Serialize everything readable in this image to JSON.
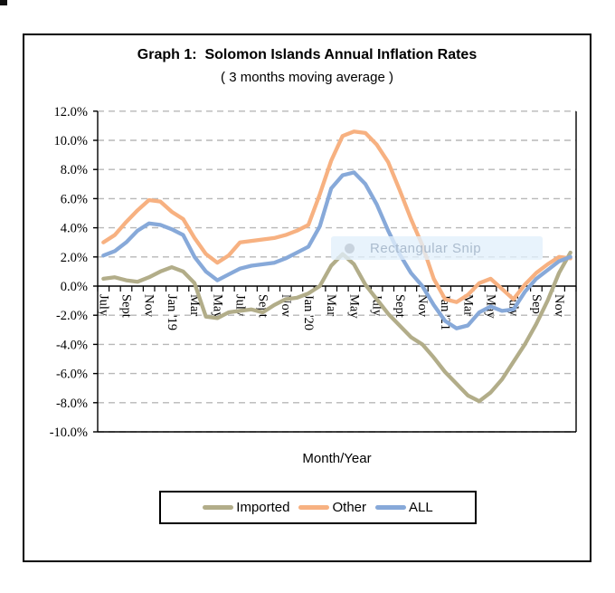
{
  "chart": {
    "title": "Graph 1:  Solomon Islands Annual Inflation Rates",
    "subtitle": "( 3 months moving average )",
    "x_axis_title": "Month/Year",
    "overlay": {
      "label": "Rectangular Snip"
    },
    "colors": {
      "imported": "#b2ad89",
      "other": "#f7b181",
      "all": "#87a9d9",
      "gridline": "#b8b8b8",
      "axis": "#000000"
    }
  },
  "chart_data": {
    "type": "line",
    "title": "Graph 1: Solomon Islands Annual Inflation Rates",
    "subtitle": "( 3 months moving average )",
    "xlabel": "Month/Year",
    "ylabel": "",
    "ylim": [
      -10,
      12
    ],
    "grid": "horizontal-dashed",
    "legend_position": "bottom",
    "y_tick_labels": [
      "12.0%",
      "10.0%",
      "8.0%",
      "6.0%",
      "4.0%",
      "2.0%",
      "0.0%",
      "-2.0%",
      "-4.0%",
      "-6.0%",
      "-8.0%",
      "-10.0%"
    ],
    "y_tick_values": [
      12,
      10,
      8,
      6,
      4,
      2,
      0,
      -2,
      -4,
      -6,
      -8,
      -10
    ],
    "x_tick_labels": [
      "July",
      "Sept",
      "Nov",
      "Jan '19",
      "Mar",
      "May",
      "July",
      "Sept",
      "Nov",
      "Jan '20",
      "Mar",
      "May",
      "July",
      "Sept",
      "Nov",
      "Jan '21",
      "Mar",
      "May",
      "July",
      "Sep",
      "Nov"
    ],
    "categories": [
      "Jul '18",
      "Aug '18",
      "Sep '18",
      "Oct '18",
      "Nov '18",
      "Dec '18",
      "Jan '19",
      "Feb '19",
      "Mar '19",
      "Apr '19",
      "May '19",
      "Jun '19",
      "Jul '19",
      "Aug '19",
      "Sep '19",
      "Oct '19",
      "Nov '19",
      "Dec '19",
      "Jan '20",
      "Feb '20",
      "Mar '20",
      "Apr '20",
      "May '20",
      "Jun '20",
      "Jul '20",
      "Aug '20",
      "Sep '20",
      "Oct '20",
      "Nov '20",
      "Dec '20",
      "Jan '21",
      "Feb '21",
      "Mar '21",
      "Apr '21",
      "May '21",
      "Jun '21",
      "Jul '21",
      "Aug '21",
      "Sep '21",
      "Oct '21",
      "Nov '21",
      "Dec '21"
    ],
    "series": [
      {
        "name": "Imported",
        "color": "#b2ad89",
        "values": [
          0.5,
          0.6,
          0.4,
          0.3,
          0.6,
          1.0,
          1.3,
          1.0,
          0.2,
          -2.1,
          -2.2,
          -1.8,
          -1.7,
          -1.6,
          -1.8,
          -1.3,
          -0.9,
          -0.8,
          -0.5,
          0.0,
          1.4,
          2.2,
          1.5,
          0.1,
          -0.9,
          -1.9,
          -2.7,
          -3.5,
          -4.0,
          -4.9,
          -5.9,
          -6.7,
          -7.5,
          -7.9,
          -7.3,
          -6.4,
          -5.2,
          -4.0,
          -2.6,
          -1.0,
          0.9,
          2.3
        ]
      },
      {
        "name": "Other",
        "color": "#f7b181",
        "values": [
          3.0,
          3.5,
          4.4,
          5.2,
          5.9,
          5.8,
          5.1,
          4.6,
          3.3,
          2.2,
          1.6,
          2.1,
          3.0,
          3.1,
          3.2,
          3.3,
          3.5,
          3.8,
          4.2,
          6.3,
          8.6,
          10.3,
          10.6,
          10.5,
          9.7,
          8.5,
          6.6,
          4.6,
          2.8,
          0.5,
          -0.9,
          -1.1,
          -0.6,
          0.2,
          0.5,
          -0.2,
          -0.9,
          0.1,
          0.9,
          1.5,
          2.0,
          1.9
        ]
      },
      {
        "name": "ALL",
        "color": "#87a9d9",
        "values": [
          2.1,
          2.4,
          3.0,
          3.8,
          4.3,
          4.2,
          3.9,
          3.5,
          2.0,
          1.0,
          0.4,
          0.8,
          1.2,
          1.4,
          1.5,
          1.6,
          1.9,
          2.3,
          2.7,
          4.1,
          6.7,
          7.6,
          7.8,
          7.0,
          5.6,
          3.8,
          2.2,
          0.9,
          0.0,
          -1.3,
          -2.4,
          -2.9,
          -2.7,
          -1.8,
          -1.4,
          -1.7,
          -1.6,
          -0.4,
          0.5,
          1.1,
          1.7,
          2.0
        ]
      }
    ]
  }
}
